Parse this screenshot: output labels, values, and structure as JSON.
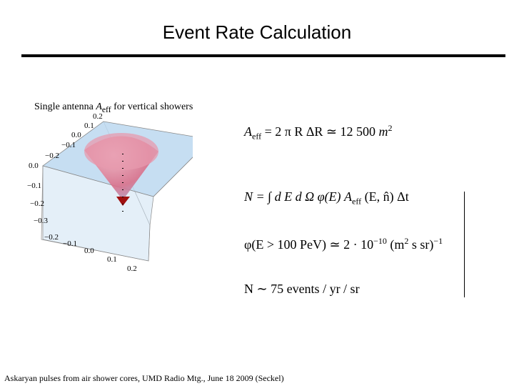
{
  "slide": {
    "title": "Event Rate Calculation",
    "plot": {
      "caption": [
        "Single antenna ",
        "A",
        "eff",
        " for vertical showers"
      ],
      "tick_labels": [
        "0.2",
        "0.1",
        "0.0",
        "−0.1",
        "−0.2",
        "0.0",
        "−0.1",
        "−0.2",
        "−0.3",
        "−0.2",
        "−0.1",
        "0.0",
        "0.1",
        "0.2"
      ]
    },
    "equations": [
      [
        "A",
        "eff",
        " = 2 π R ΔR ≃ 12 500 ",
        "m",
        "2"
      ],
      [
        "N = ∫ d E d Ω φ(E) A",
        "eff",
        " (E, n̂) Δt"
      ],
      [
        "φ(E > 100 PeV) ≃ 2 · 10",
        "−10",
        " (m",
        "2",
        " s sr)",
        "−1"
      ],
      [
        "N ∼ 75 events / yr / sr"
      ]
    ],
    "footer": "Askaryan pulses from air shower cores, UMD Radio Mtg., June 18 2009 (Seckel)"
  }
}
